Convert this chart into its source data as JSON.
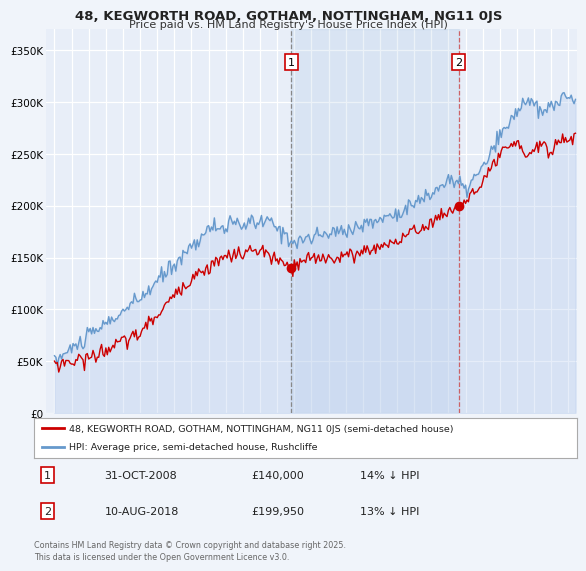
{
  "title1": "48, KEGWORTH ROAD, GOTHAM, NOTTINGHAM, NG11 0JS",
  "title2": "Price paid vs. HM Land Registry's House Price Index (HPI)",
  "background_color": "#f0f4fa",
  "plot_bg_color": "#e8eef8",
  "grid_color": "#ffffff",
  "legend_label_red": "48, KEGWORTH ROAD, GOTHAM, NOTTINGHAM, NG11 0JS (semi-detached house)",
  "legend_label_blue": "HPI: Average price, semi-detached house, Rushcliffe",
  "annotation1_label": "1",
  "annotation1_date": "31-OCT-2008",
  "annotation1_price": "£140,000",
  "annotation1_hpi": "14% ↓ HPI",
  "annotation2_label": "2",
  "annotation2_date": "10-AUG-2018",
  "annotation2_price": "£199,950",
  "annotation2_hpi": "13% ↓ HPI",
  "footer": "Contains HM Land Registry data © Crown copyright and database right 2025.\nThis data is licensed under the Open Government Licence v3.0.",
  "vline1_x": 2008.833,
  "vline2_x": 2018.6,
  "marker1_red_x": 2008.833,
  "marker1_red_y": 140000,
  "marker2_red_x": 2018.6,
  "marker2_red_y": 199950,
  "ylim": [
    0,
    370000
  ],
  "xlim": [
    1994.5,
    2025.5
  ],
  "yticks": [
    0,
    50000,
    100000,
    150000,
    200000,
    250000,
    300000,
    350000
  ],
  "ytick_labels": [
    "£0",
    "£50K",
    "£100K",
    "£150K",
    "£200K",
    "£250K",
    "£300K",
    "£350K"
  ],
  "xticks": [
    1995,
    1996,
    1997,
    1998,
    1999,
    2000,
    2001,
    2002,
    2003,
    2004,
    2005,
    2006,
    2007,
    2008,
    2009,
    2010,
    2011,
    2012,
    2013,
    2014,
    2015,
    2016,
    2017,
    2018,
    2019,
    2020,
    2021,
    2022,
    2023,
    2024,
    2025
  ],
  "red_color": "#cc0000",
  "blue_color": "#6699cc",
  "blue_fill_color": "#b8ccee",
  "vline1_color": "#888888",
  "vline2_color": "#cc4444"
}
